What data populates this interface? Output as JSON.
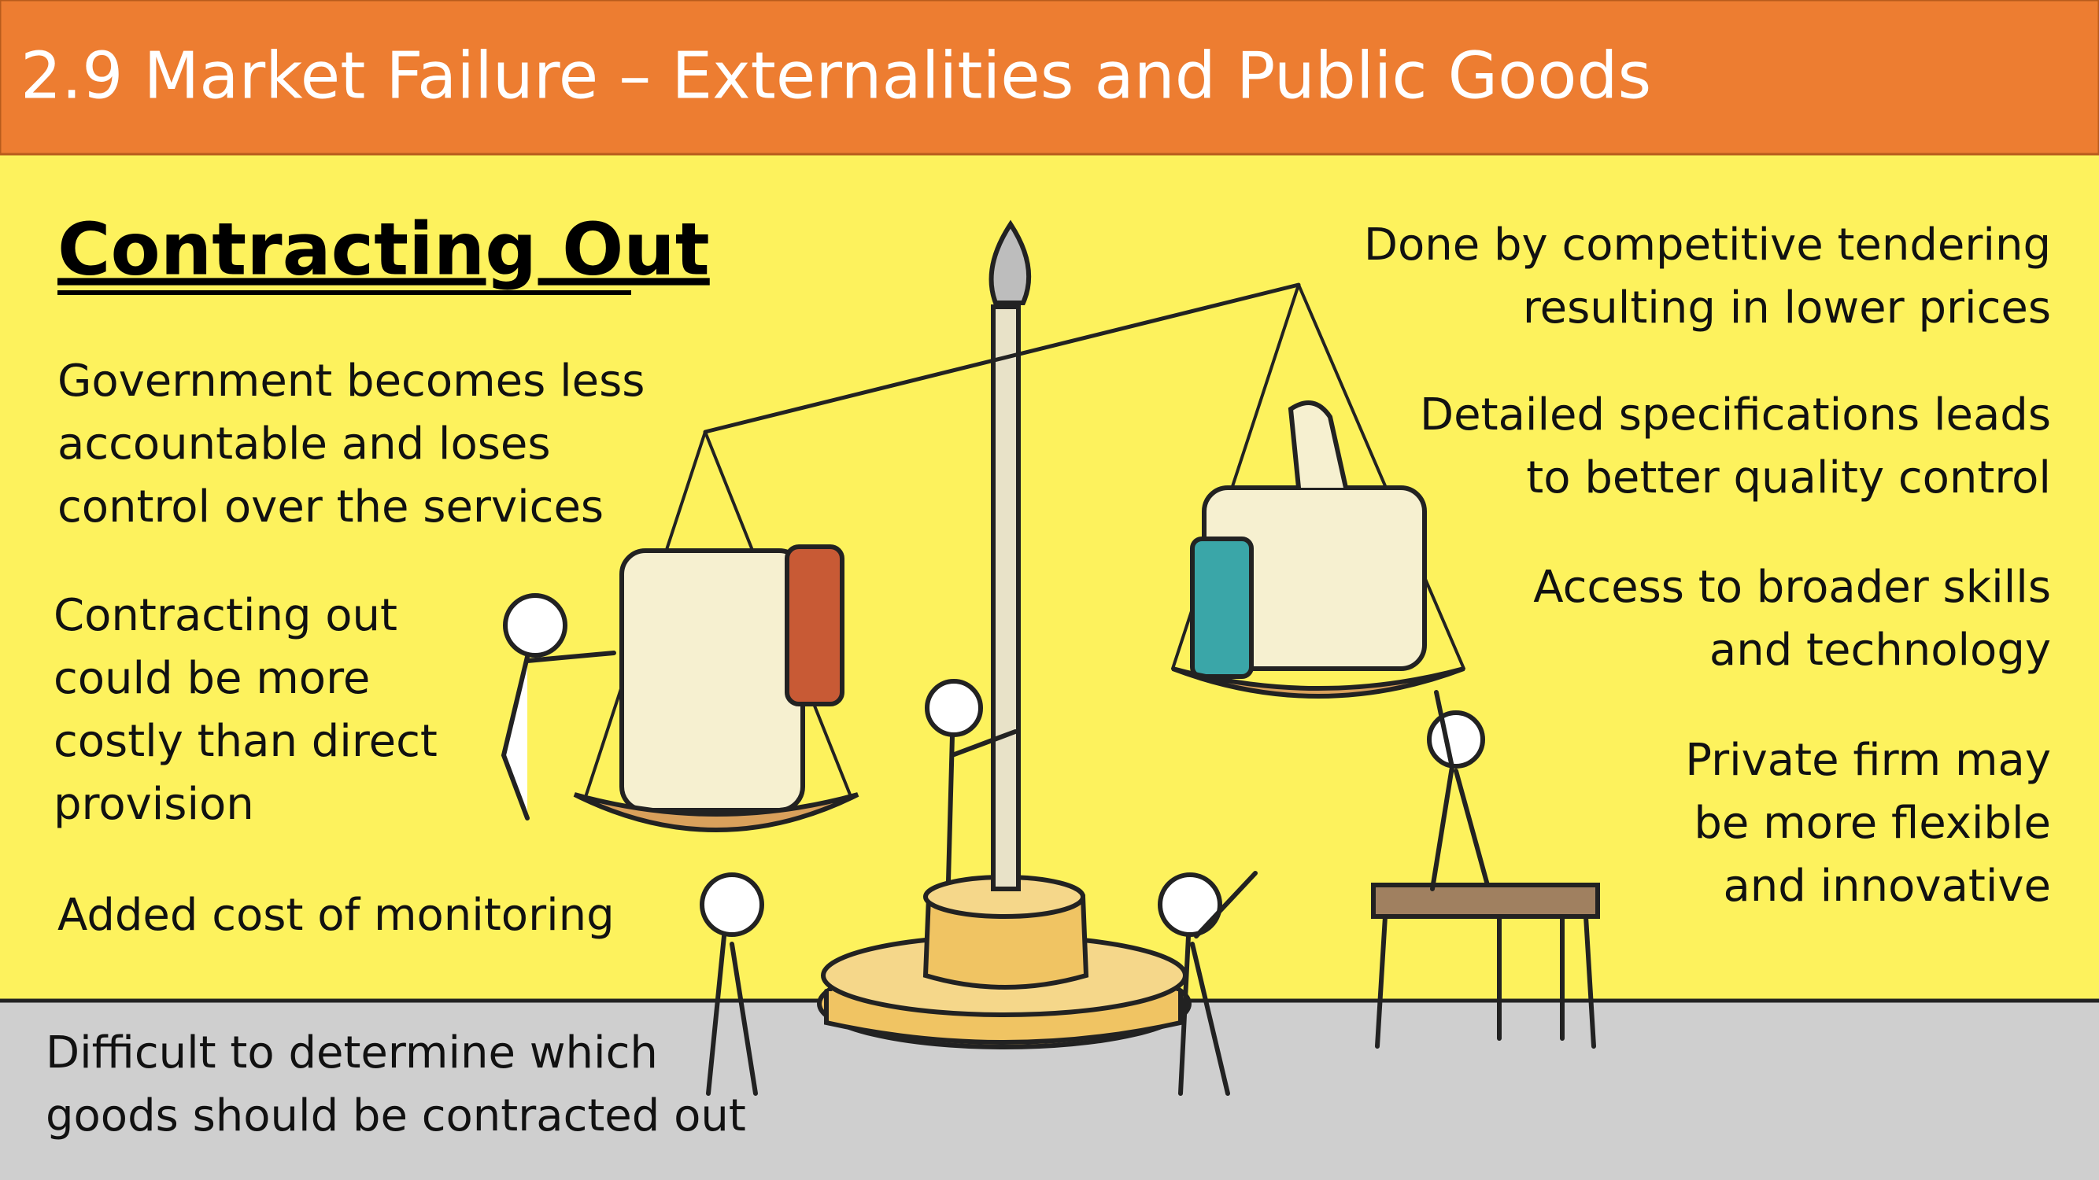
{
  "header": {
    "title": "2.9 Market Failure – Externalities and Public Goods"
  },
  "heading": "Contracting Out",
  "left_points": [
    {
      "lines": [
        "Government becomes less",
        "accountable and loses",
        "control over the services"
      ]
    },
    {
      "lines": [
        "Contracting out",
        "could be more",
        "costly than direct",
        "provision"
      ]
    },
    {
      "lines": [
        "Added cost of monitoring"
      ]
    }
  ],
  "bottom_point": {
    "lines": [
      "Difficult to determine which",
      "goods should be contracted out"
    ]
  },
  "right_points": [
    {
      "lines": [
        "Done by competitive tendering",
        "resulting in lower prices"
      ]
    },
    {
      "lines": [
        "Detailed specifications leads",
        "to better quality control"
      ]
    },
    {
      "lines": [
        "Access to broader skills",
        "and technology"
      ]
    },
    {
      "lines": [
        "Private firm may",
        "be more flexible",
        "and innovative"
      ]
    }
  ]
}
